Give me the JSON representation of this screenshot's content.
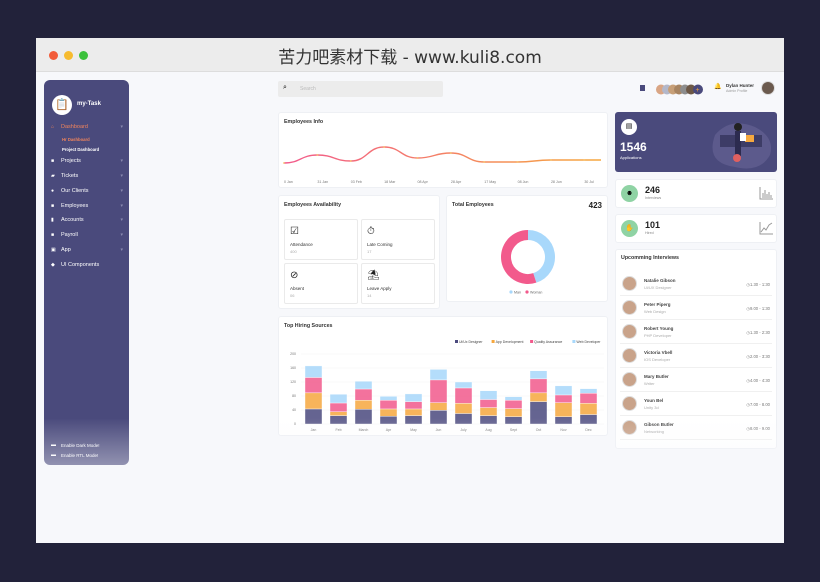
{
  "window": {
    "title": "苦力吧素材下载 - www.kuli8.com"
  },
  "sidebar": {
    "brand": "my-Task",
    "items": [
      {
        "label": "Dashboard",
        "icon": "home-icon",
        "active": true,
        "children": [
          {
            "label": "Hr Dashboard",
            "active": true
          },
          {
            "label": "Project Dashboard"
          }
        ]
      },
      {
        "label": "Projects",
        "icon": "briefcase-icon"
      },
      {
        "label": "Tickets",
        "icon": "ticket-icon"
      },
      {
        "label": "Our Clients",
        "icon": "user-icon"
      },
      {
        "label": "Employees",
        "icon": "users-icon"
      },
      {
        "label": "Accounts",
        "icon": "calculator-icon"
      },
      {
        "label": "Payroll",
        "icon": "wallet-icon"
      },
      {
        "label": "App",
        "icon": "app-icon"
      },
      {
        "label": "UI Components",
        "icon": "puzzle-icon"
      }
    ],
    "toggles": [
      "Enable Dark Mode!",
      "Enable RTL Mode!"
    ]
  },
  "header": {
    "search_placeholder": "Search",
    "user_name": "Dylan Hunter",
    "user_role": "Admin Profile"
  },
  "employees_info": {
    "title": "Employees Info"
  },
  "applications": {
    "value": "1546",
    "label": "Applications"
  },
  "interviews": {
    "value": "246",
    "label": "Interviews"
  },
  "hired": {
    "value": "101",
    "label": "Hired"
  },
  "availability": {
    "title": "Employees Availability",
    "tiles": [
      {
        "label": "Attendance",
        "value": "400",
        "icon": "checkbox-icon"
      },
      {
        "label": "Late Coming",
        "value": "17",
        "icon": "stopwatch-icon"
      },
      {
        "label": "Absent",
        "value": "06",
        "icon": "ban-icon"
      },
      {
        "label": "Leave Apply",
        "value": "14",
        "icon": "beach-icon"
      }
    ]
  },
  "total_employees": {
    "title": "Total Employees",
    "value": "423"
  },
  "upcoming": {
    "title": "Upcomming Interviews",
    "items": [
      {
        "name": "Natalie Gibson",
        "role": "Ui/UX Designer",
        "time": "1.30 - 1:30"
      },
      {
        "name": "Peter Piperg",
        "role": "Web Design",
        "time": "9.00 - 1:30"
      },
      {
        "name": "Robert Young",
        "role": "PHP Developer",
        "time": "1.30 - 2:30"
      },
      {
        "name": "Victoria Vbell",
        "role": "IOS Developer",
        "time": "2.00 - 3:30"
      },
      {
        "name": "Mary Butler",
        "role": "Writer",
        "time": "4.00 - 4:30"
      },
      {
        "name": "Youn Bel",
        "role": "Unity 3d",
        "time": "7.00 - 8.00"
      },
      {
        "name": "Gibson Butler",
        "role": "Networking",
        "time": "8.00 - 9.00"
      }
    ]
  },
  "hiring": {
    "title": "Top Hiring Sources"
  },
  "chart_data": [
    {
      "type": "line",
      "title": "Employees Info",
      "x": [
        "0 Jan",
        "31 Jan",
        "03 Feb",
        "18 Mar",
        "08 Apr",
        "28 Apr",
        "17 May",
        "08 Jun",
        "28 Jun",
        "30 Jul"
      ],
      "values": [
        10,
        18,
        12,
        26,
        15,
        20,
        11,
        11,
        13,
        13
      ],
      "grid": false,
      "colors": [
        "#f25a8c",
        "#f6a83f"
      ]
    },
    {
      "type": "pie",
      "title": "Total Employees",
      "categories": [
        "Man",
        "Woman"
      ],
      "values": [
        45,
        55
      ],
      "colors": [
        "#a8d8fb",
        "#f25a8c"
      ],
      "legend": "bottom"
    },
    {
      "type": "bar",
      "stacked": true,
      "title": "Top Hiring Sources",
      "categories": [
        "Jan",
        "Feb",
        "March",
        "Apr",
        "May",
        "Jun",
        "July",
        "Aug",
        "Sept",
        "Oct",
        "Nov",
        "Dec"
      ],
      "ylim": [
        0,
        200
      ],
      "yticks": [
        0,
        40,
        80,
        120,
        160,
        200
      ],
      "legend": "top-right",
      "series": [
        {
          "name": "Ui/Ux Designer",
          "color": "#4b4a7e",
          "values": [
            43,
            24,
            42,
            22,
            24,
            39,
            30,
            24,
            21,
            64,
            21,
            27
          ]
        },
        {
          "name": "App Development",
          "color": "#f6a83f",
          "values": [
            46,
            11,
            26,
            21,
            19,
            22,
            29,
            23,
            23,
            25,
            40,
            32
          ]
        },
        {
          "name": "Quality Assurance",
          "color": "#f25a8c",
          "values": [
            44,
            25,
            32,
            25,
            21,
            65,
            44,
            23,
            24,
            40,
            22,
            29
          ]
        },
        {
          "name": "Web Developer",
          "color": "#a8d8fb",
          "values": [
            33,
            25,
            22,
            11,
            22,
            30,
            17,
            25,
            10,
            23,
            26,
            13
          ]
        }
      ]
    }
  ]
}
